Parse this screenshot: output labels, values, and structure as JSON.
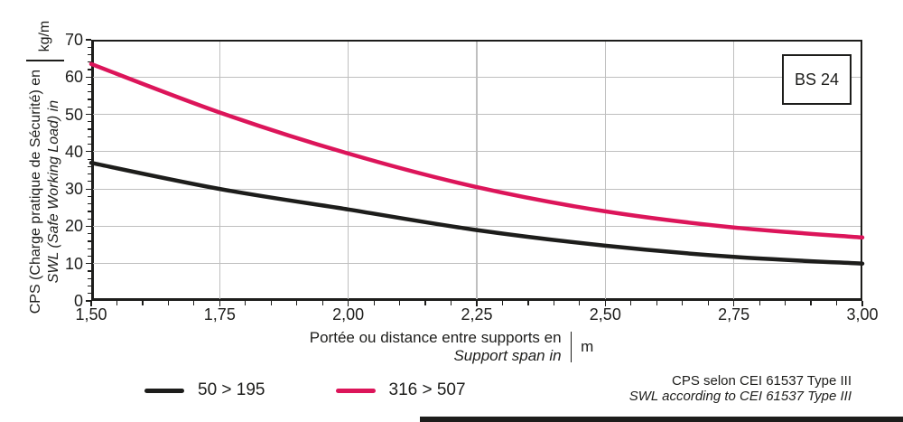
{
  "labels": {
    "badge": "BS 24",
    "y_axis_fr": "CPS (Charge pratique de Sécurité) en",
    "y_axis_en": "SWL (Safe Working Load) in",
    "y_unit": "kg/m",
    "x_axis_fr": "Portée ou distance entre supports en",
    "x_axis_en": "Support span in",
    "x_unit": "m",
    "footnote_fr": "CPS selon CEI 61537 Type III",
    "footnote_en": "SWL according to CEI 61537 Type III"
  },
  "colors": {
    "ink": "#1d1d1b",
    "accent": "#dc155a",
    "grid": "#bfbfbf"
  },
  "chart_data": {
    "type": "line",
    "x": [
      1.5,
      1.75,
      2.0,
      2.25,
      2.5,
      2.75,
      3.0
    ],
    "series": [
      {
        "name": "50 > 195",
        "color": "#1d1d1b",
        "values": [
          37,
          30,
          24.5,
          19,
          14.8,
          11.8,
          10
        ]
      },
      {
        "name": "316 > 507",
        "color": "#dc155a",
        "values": [
          63.5,
          50.5,
          39.5,
          30.5,
          24,
          19.7,
          17
        ]
      }
    ],
    "xlim": [
      1.5,
      3.0
    ],
    "ylim": [
      0,
      70
    ],
    "x_tick_labels": [
      "1,50",
      "1,75",
      "2,00",
      "2,25",
      "2,50",
      "2,75",
      "3,00"
    ],
    "x_ticks": [
      1.5,
      1.75,
      2.0,
      2.25,
      2.5,
      2.75,
      3.0
    ],
    "y_ticks": [
      0,
      10,
      20,
      30,
      40,
      50,
      60,
      70
    ],
    "x_minor_step": 0.05,
    "y_minor_step": 2,
    "grid": true,
    "legend_position": "bottom-left",
    "title": "",
    "xlabel": "Portée ou distance entre supports en / Support span in (m)",
    "ylabel": "CPS (Charge pratique de Sécurité) en / SWL (Safe Working Load) in (kg/m)"
  }
}
